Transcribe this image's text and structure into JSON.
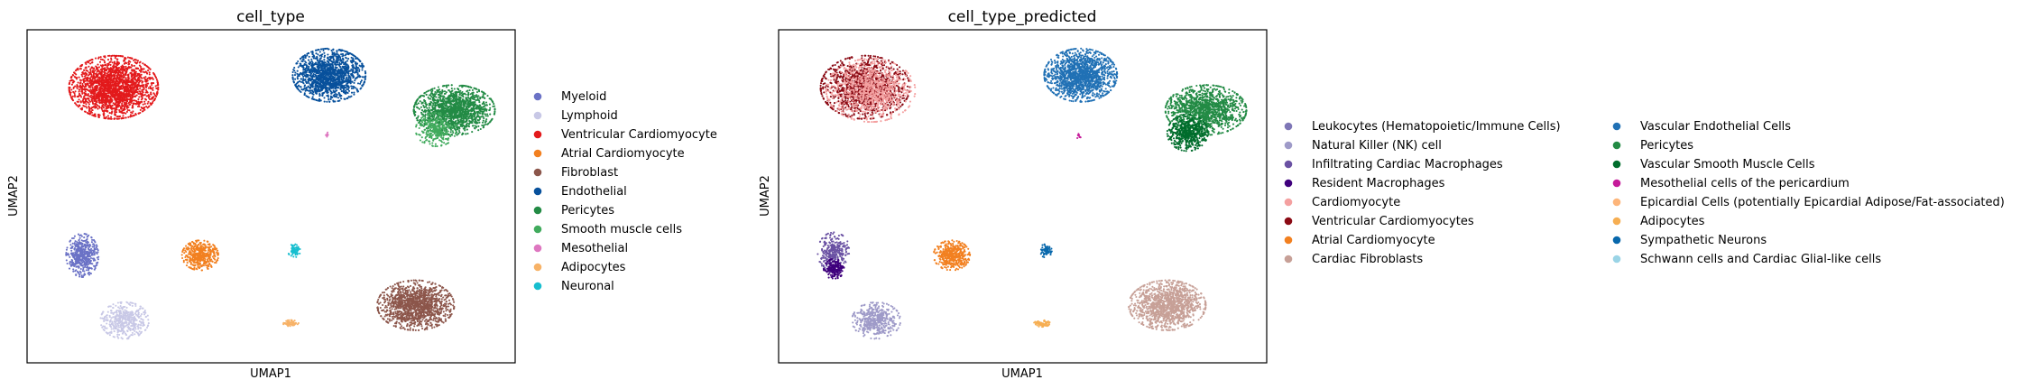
{
  "chart_data": [
    {
      "type": "scatter",
      "title": "cell_type",
      "xlabel": "UMAP1",
      "ylabel": "UMAP2",
      "grid": false,
      "legend_placement": "right",
      "legend": [
        {
          "name": "Myeloid",
          "color": "#6b72c6"
        },
        {
          "name": "Lymphoid",
          "color": "#c8c8e6"
        },
        {
          "name": "Ventricular Cardiomyocyte",
          "color": "#e31a1c"
        },
        {
          "name": "Atrial Cardiomyocyte",
          "color": "#f28020"
        },
        {
          "name": "Fibroblast",
          "color": "#8c564b"
        },
        {
          "name": "Endothelial",
          "color": "#08519c"
        },
        {
          "name": "Pericytes",
          "color": "#238b45"
        },
        {
          "name": "Smooth muscle cells",
          "color": "#41ab5d"
        },
        {
          "name": "Mesothelial",
          "color": "#de77c0"
        },
        {
          "name": "Adipocytes",
          "color": "#f7b267"
        },
        {
          "name": "Neuronal",
          "color": "#17becf"
        }
      ],
      "clusters": [
        {
          "label": "Ventricular Cardiomyocyte",
          "x": -8.3,
          "y": 7.2,
          "spread": [
            2.2,
            1.9
          ],
          "n": 2200
        },
        {
          "label": "Endothelial",
          "x": 3.4,
          "y": 8.0,
          "spread": [
            1.8,
            1.6
          ],
          "n": 1500
        },
        {
          "label": "Pericytes",
          "x": 10.2,
          "y": 5.7,
          "spread": [
            2.0,
            1.5
          ],
          "n": 1500
        },
        {
          "label": "Smooth muscle cells",
          "x": 9.2,
          "y": 4.4,
          "spread": [
            1.0,
            1.0
          ],
          "n": 300
        },
        {
          "label": "Myeloid",
          "x": -10.0,
          "y": -3.9,
          "spread": [
            0.8,
            1.3
          ],
          "n": 500
        },
        {
          "label": "Lymphoid",
          "x": -7.7,
          "y": -8.2,
          "spread": [
            1.2,
            1.1
          ],
          "n": 450
        },
        {
          "label": "Atrial Cardiomyocyte",
          "x": -3.6,
          "y": -3.9,
          "spread": [
            0.9,
            0.9
          ],
          "n": 450
        },
        {
          "label": "Neuronal",
          "x": 1.5,
          "y": -3.6,
          "spread": [
            0.3,
            0.4
          ],
          "n": 70
        },
        {
          "label": "Fibroblast",
          "x": 8.1,
          "y": -7.2,
          "spread": [
            1.9,
            1.5
          ],
          "n": 1300
        },
        {
          "label": "Adipocytes",
          "x": 1.3,
          "y": -8.4,
          "spread": [
            0.4,
            0.2
          ],
          "n": 70
        },
        {
          "label": "Mesothelial",
          "x": 3.3,
          "y": 4.0,
          "spread": [
            0.1,
            0.2
          ],
          "n": 10
        }
      ]
    },
    {
      "type": "scatter",
      "title": "cell_type_predicted",
      "xlabel": "UMAP1",
      "ylabel": "UMAP2",
      "grid": false,
      "legend_placement": "right",
      "legend": [
        {
          "name": "Leukocytes (Hematopoietic/Immune Cells)",
          "color": "#7e76b6"
        },
        {
          "name": "Natural Killer (NK) cell",
          "color": "#9e9ac8"
        },
        {
          "name": "Infiltrating Cardiac Macrophages",
          "color": "#6a51a3"
        },
        {
          "name": "Resident Macrophages",
          "color": "#3f007d"
        },
        {
          "name": "Cardiomyocyte",
          "color": "#f4a0a0"
        },
        {
          "name": "Ventricular Cardiomyocytes",
          "color": "#8b0a14"
        },
        {
          "name": "Atrial Cardiomyocyte",
          "color": "#f28020"
        },
        {
          "name": "Cardiac Fibroblasts",
          "color": "#c7a097"
        },
        {
          "name": "Vascular Endothelial Cells",
          "color": "#2171b5"
        },
        {
          "name": "Pericytes",
          "color": "#238b45"
        },
        {
          "name": "Vascular Smooth Muscle Cells",
          "color": "#006d2c"
        },
        {
          "name": "Mesothelial cells of the pericardium",
          "color": "#c51b9a"
        },
        {
          "name": "Epicardial Cells (potentially Epicardial Adipose/Fat-associated)",
          "color": "#fdb57a"
        },
        {
          "name": "Adipocytes",
          "color": "#f6ae52"
        },
        {
          "name": "Sympathetic Neurons",
          "color": "#0868ac"
        },
        {
          "name": "Schwann cells and Cardiac Glial-like cells",
          "color": "#9ad4e6"
        }
      ],
      "clusters": [
        {
          "label": "Ventricular Cardiomyocytes",
          "x": -8.3,
          "y": 7.2,
          "spread": [
            2.2,
            1.9
          ],
          "n": 1300
        },
        {
          "label": "Cardiomyocyte",
          "x": -8.0,
          "y": 7.0,
          "spread": [
            2.2,
            1.9
          ],
          "n": 900
        },
        {
          "label": "Vascular Endothelial Cells",
          "x": 3.4,
          "y": 8.0,
          "spread": [
            1.8,
            1.6
          ],
          "n": 1500
        },
        {
          "label": "Pericytes",
          "x": 10.2,
          "y": 5.7,
          "spread": [
            2.0,
            1.5
          ],
          "n": 1300
        },
        {
          "label": "Vascular Smooth Muscle Cells",
          "x": 9.2,
          "y": 4.2,
          "spread": [
            1.0,
            1.1
          ],
          "n": 500
        },
        {
          "label": "Infiltrating Cardiac Macrophages",
          "x": -10.0,
          "y": -3.7,
          "spread": [
            0.8,
            1.2
          ],
          "n": 300
        },
        {
          "label": "Resident Macrophages",
          "x": -10.0,
          "y": -4.8,
          "spread": [
            0.5,
            0.6
          ],
          "n": 200
        },
        {
          "label": "Natural Killer (NK) cell",
          "x": -7.7,
          "y": -8.2,
          "spread": [
            1.2,
            1.1
          ],
          "n": 450
        },
        {
          "label": "Atrial Cardiomyocyte",
          "x": -3.6,
          "y": -3.9,
          "spread": [
            0.9,
            0.9
          ],
          "n": 450
        },
        {
          "label": "Sympathetic Neurons",
          "x": 1.5,
          "y": -3.6,
          "spread": [
            0.3,
            0.4
          ],
          "n": 70
        },
        {
          "label": "Cardiac Fibroblasts",
          "x": 8.1,
          "y": -7.2,
          "spread": [
            1.9,
            1.5
          ],
          "n": 1300
        },
        {
          "label": "Adipocytes",
          "x": 1.3,
          "y": -8.4,
          "spread": [
            0.4,
            0.2
          ],
          "n": 70
        },
        {
          "label": "Mesothelial cells of the pericardium",
          "x": 3.3,
          "y": 4.0,
          "spread": [
            0.1,
            0.2
          ],
          "n": 10
        }
      ]
    }
  ]
}
